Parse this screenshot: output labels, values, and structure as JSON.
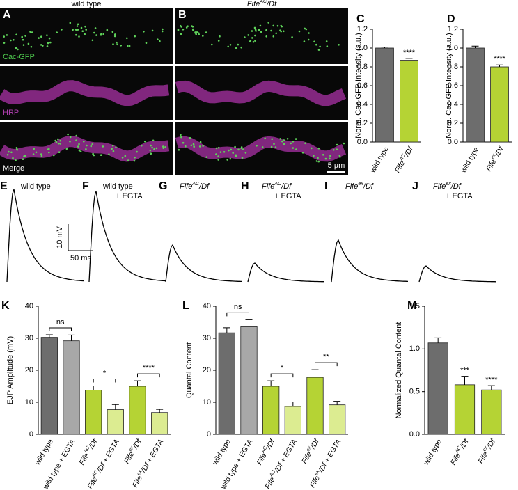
{
  "images": {
    "panels": [
      {
        "letter": "A",
        "title": "wild type"
      },
      {
        "letter": "B",
        "title": "FifeAC/Df"
      }
    ],
    "channels": [
      "Cac-GFP",
      "HRP",
      "Merge"
    ],
    "scale_bar": "5 µm"
  },
  "traces": {
    "panels": [
      {
        "letter": "E",
        "title": [
          "wild type"
        ]
      },
      {
        "letter": "F",
        "title": [
          "wild type",
          "+ EGTA"
        ]
      },
      {
        "letter": "G",
        "title": [
          "FifeAC/Df"
        ]
      },
      {
        "letter": "H",
        "title": [
          "FifeAC/Df",
          "+ EGTA"
        ]
      },
      {
        "letter": "I",
        "title": [
          "Fifeex/Df"
        ]
      },
      {
        "letter": "J",
        "title": [
          "Fifeex/Df",
          "+ EGTA"
        ]
      }
    ],
    "scale_y": "10 mV",
    "scale_x": "50 ms"
  },
  "chart_data": [
    {
      "type": "bar",
      "panel": "C",
      "ylabel": "Norm. Cac-GFP Intensity (a.u.)",
      "categories": [
        "wild type",
        "FifeAC/Df"
      ],
      "values": [
        1.0,
        0.87
      ],
      "errors": [
        0.01,
        0.02
      ],
      "colors": [
        "#6d6d6d",
        "#b5d334"
      ],
      "ylim": [
        0,
        1.2
      ],
      "yticks": [
        {
          "value": 0,
          "label": "0.0"
        },
        {
          "value": 0.2,
          "label": "0.2"
        },
        {
          "value": 0.4,
          "label": "0.4"
        },
        {
          "value": 0.6,
          "label": "0.6"
        },
        {
          "value": 0.8,
          "label": "0.8"
        },
        {
          "value": 1,
          "label": "1.0"
        },
        {
          "value": 1.2,
          "label": "1.2"
        }
      ],
      "annotations": [
        "****"
      ]
    },
    {
      "type": "bar",
      "panel": "D",
      "ylabel": "Norm. Cac-GFP Intensity (a.u.)",
      "categories": [
        "wild type",
        "Fifeex/Df"
      ],
      "values": [
        1.0,
        0.8
      ],
      "errors": [
        0.02,
        0.02
      ],
      "colors": [
        "#6d6d6d",
        "#b5d334"
      ],
      "ylim": [
        0,
        1.2
      ],
      "yticks": [
        {
          "value": 0,
          "label": "0.0"
        },
        {
          "value": 0.2,
          "label": "0.2"
        },
        {
          "value": 0.4,
          "label": "0.4"
        },
        {
          "value": 0.6,
          "label": "0.6"
        },
        {
          "value": 0.8,
          "label": "0.8"
        },
        {
          "value": 1,
          "label": "1.0"
        },
        {
          "value": 1.2,
          "label": "1.2"
        }
      ],
      "annotations": [
        "****"
      ]
    },
    {
      "type": "bar",
      "panel": "K",
      "ylabel": "EJP Amplitude (mV)",
      "categories": [
        "wild type",
        "wild type + EGTA",
        "FifeAC/Df",
        "FifeAC/Df + EGTA",
        "Fifeex/Df",
        "Fifeex/Df + EGTA"
      ],
      "values": [
        30.3,
        29.2,
        13.8,
        7.7,
        15.0,
        6.8
      ],
      "errors": [
        0.8,
        1.8,
        1.3,
        1.6,
        1.7,
        1.0
      ],
      "colors": [
        "#6d6d6d",
        "#a8a8a8",
        "#b5d334",
        "#dcec91",
        "#b5d334",
        "#dcec91"
      ],
      "ylim": [
        0,
        40
      ],
      "yticks": [
        0,
        10,
        20,
        30,
        40
      ],
      "annotations": [
        "ns",
        "*",
        "****"
      ]
    },
    {
      "type": "bar",
      "panel": "L",
      "ylabel": "Quantal Content",
      "categories": [
        "wild type",
        "wild type + EGTA",
        "FifeAC/Df",
        "FifeAC/Df + EGTA",
        "Fifeex/Df",
        "Fifeex/Df + EGTA"
      ],
      "values": [
        31.7,
        33.6,
        15.0,
        8.7,
        17.8,
        9.2
      ],
      "errors": [
        1.6,
        2.2,
        1.7,
        1.4,
        2.4,
        1.1
      ],
      "colors": [
        "#6d6d6d",
        "#a8a8a8",
        "#b5d334",
        "#dcec91",
        "#b5d334",
        "#dcec91"
      ],
      "ylim": [
        0,
        40
      ],
      "yticks": [
        0,
        10,
        20,
        30,
        40
      ],
      "annotations": [
        "ns",
        "*",
        "**"
      ]
    },
    {
      "type": "bar",
      "panel": "M",
      "ylabel": "Normalized Quantal Content",
      "categories": [
        "wild type",
        "FifeAC/Df",
        "Fifeex/Df"
      ],
      "values": [
        1.07,
        0.58,
        0.52
      ],
      "errors": [
        0.06,
        0.1,
        0.05
      ],
      "colors": [
        "#6d6d6d",
        "#b5d334",
        "#b5d334"
      ],
      "ylim": [
        0,
        1.5
      ],
      "yticks": [
        {
          "value": 0,
          "label": "0.0"
        },
        {
          "value": 0.5,
          "label": "0.5"
        },
        {
          "value": 1,
          "label": "1.0"
        },
        {
          "value": 1.5,
          "label": "1.5"
        }
      ],
      "annotations": [
        "***",
        "****"
      ]
    }
  ]
}
